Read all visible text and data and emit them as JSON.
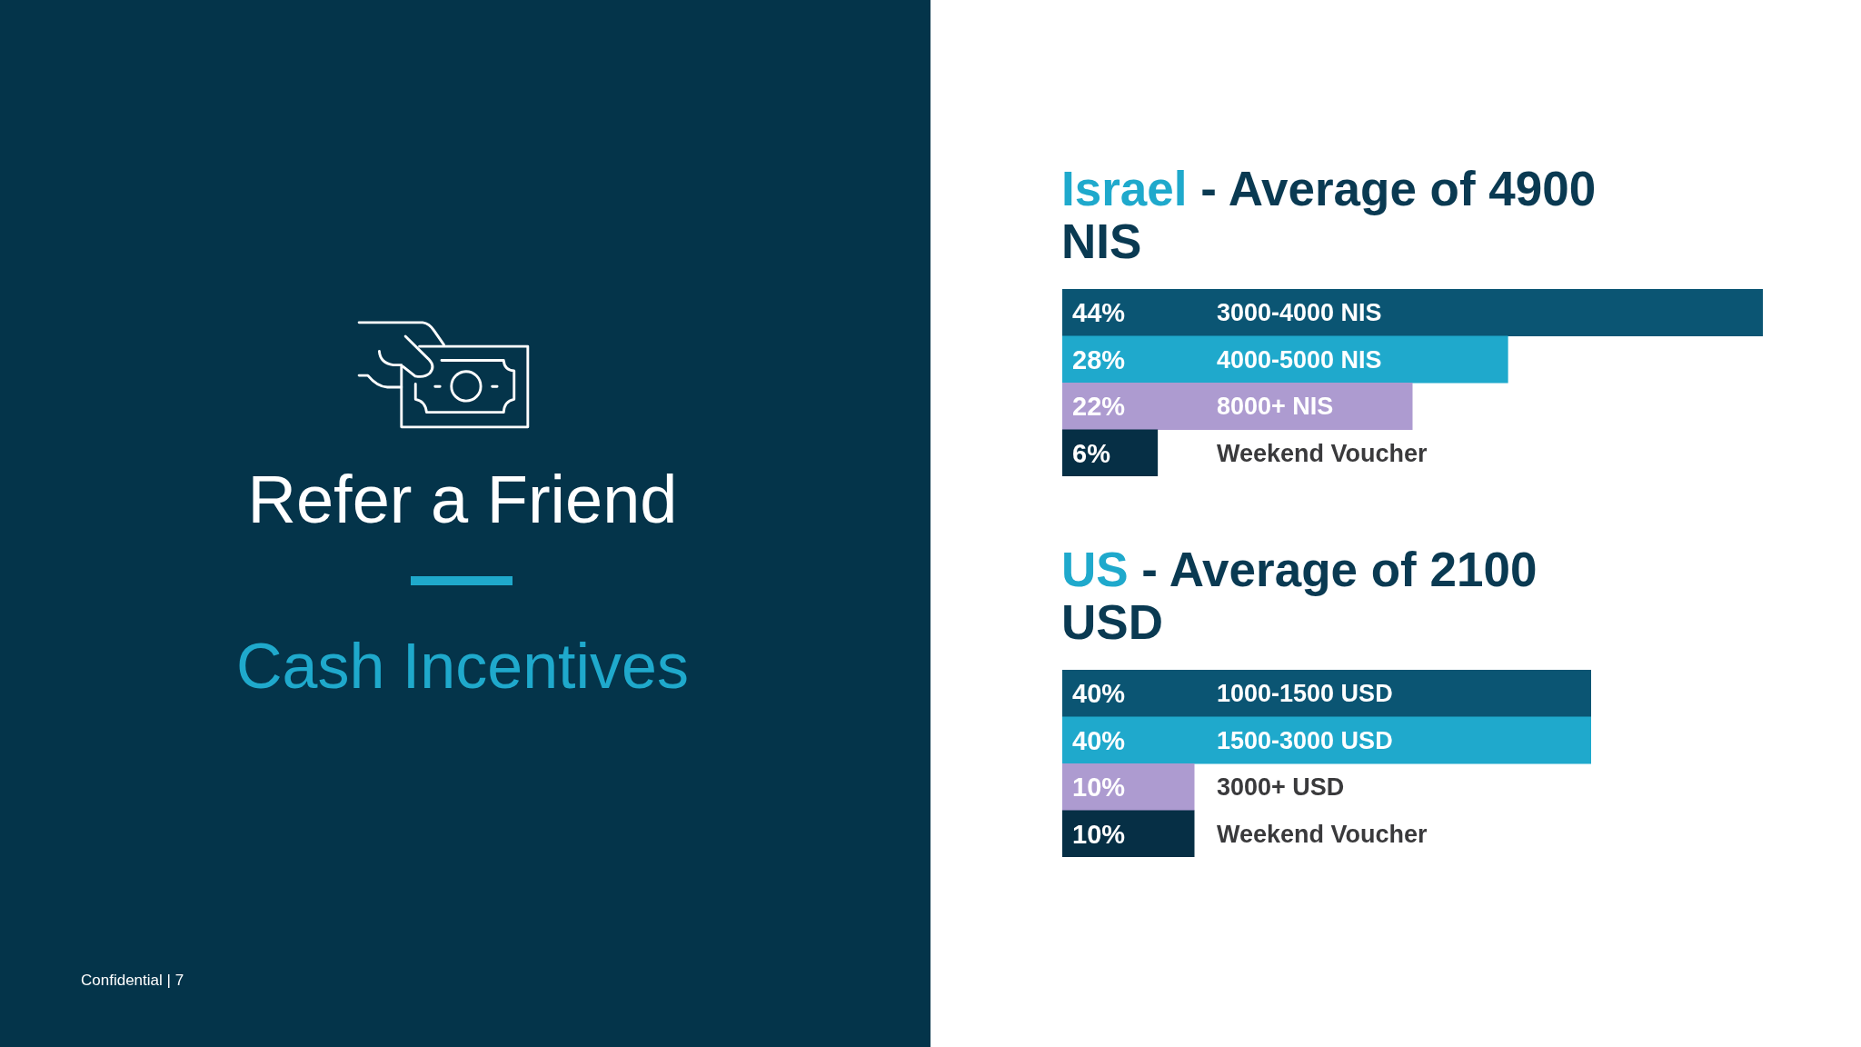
{
  "chart_data": [
    {
      "type": "other",
      "title": "Refer a Friend",
      "subtitle": "Cash Incentives",
      "annotations": [
        "Confidential | 7"
      ]
    },
    {
      "type": "bar",
      "orientation": "horizontal",
      "title": "Israel - Average of 4900 NIS",
      "categories": [
        "3000-4000 NIS",
        "4000-5000 NIS",
        "8000+ NIS",
        "Weekend Voucher"
      ],
      "values": [
        44,
        28,
        22,
        6
      ],
      "value_labels": [
        "44%",
        "28%",
        "22%",
        "6%"
      ],
      "colors": [
        "#0b5573",
        "#1fa9cc",
        "#ad9bd0",
        "#062f45"
      ],
      "tick_labels": "y"
    },
    {
      "type": "bar",
      "orientation": "horizontal",
      "title": "US - Average of 2100 USD",
      "categories": [
        "1000-1500 USD",
        "1500-3000 USD",
        "3000+ USD",
        "Weekend Voucher"
      ],
      "values": [
        40,
        40,
        10,
        10
      ],
      "value_labels": [
        "40%",
        "40%",
        "10%",
        "10%"
      ],
      "colors": [
        "#0b5573",
        "#1fa9cc",
        "#ad9bd0",
        "#062f45"
      ],
      "tick_labels": "y"
    }
  ]
}
